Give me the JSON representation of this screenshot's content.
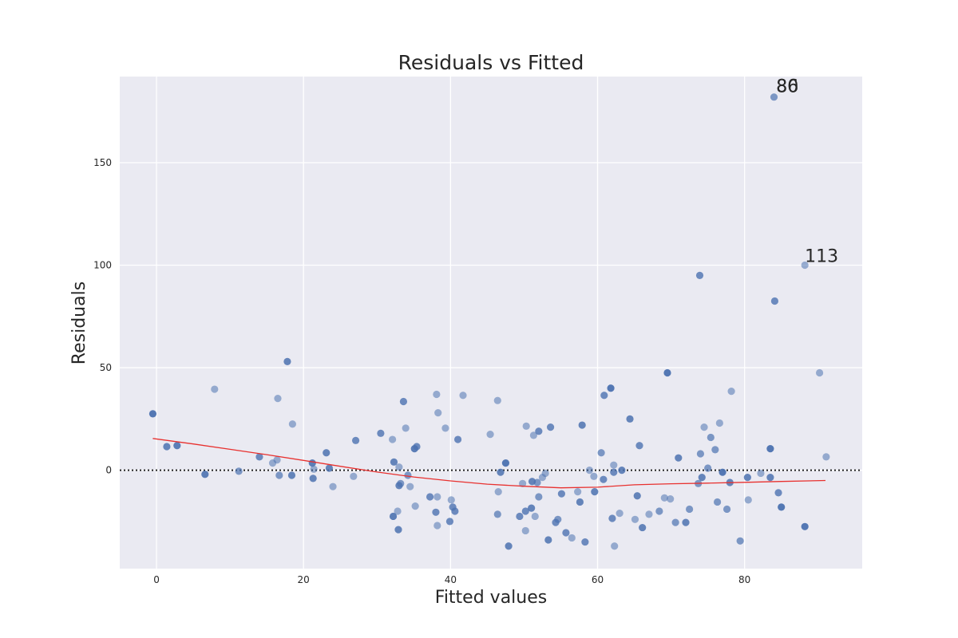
{
  "chart_data": {
    "type": "scatter",
    "title": "Residuals vs Fitted",
    "xlabel": "Fitted values",
    "ylabel": "Residuals",
    "xlim": [
      -5,
      96
    ],
    "ylim": [
      -48,
      192
    ],
    "xticks": [
      0,
      20,
      40,
      60,
      80
    ],
    "yticks": [
      0,
      50,
      100,
      150
    ],
    "grid": true,
    "zero_line": true,
    "point_color": "#4c72b0",
    "line_color": "#e8312f",
    "background_color": "#eaeaf2",
    "annotations": [
      {
        "text": "80",
        "x": 84.3,
        "y": 184.5
      },
      {
        "text": "86",
        "x": 84.3,
        "y": 184.5
      },
      {
        "text": "113",
        "x": 88.2,
        "y": 101.5
      }
    ],
    "points": [
      [
        -0.5,
        27.5,
        0.95
      ],
      [
        1.4,
        11.5,
        0.85
      ],
      [
        2.8,
        12,
        0.9
      ],
      [
        6.6,
        -2,
        0.9
      ],
      [
        7.9,
        39.5,
        0.55
      ],
      [
        11.2,
        -0.5,
        0.7
      ],
      [
        14,
        6.5,
        0.8
      ],
      [
        15.8,
        3.5,
        0.55
      ],
      [
        16.4,
        5,
        0.55
      ],
      [
        16.5,
        35,
        0.55
      ],
      [
        16.7,
        -2.5,
        0.7
      ],
      [
        17.8,
        53,
        0.85
      ],
      [
        18.4,
        -2.5,
        0.85
      ],
      [
        18.5,
        22.5,
        0.55
      ],
      [
        21.2,
        3.5,
        0.9
      ],
      [
        21.3,
        -4,
        0.85
      ],
      [
        21.4,
        0.5,
        0.55
      ],
      [
        23.1,
        8.5,
        0.85
      ],
      [
        23.5,
        1,
        0.85
      ],
      [
        24,
        -8,
        0.55
      ],
      [
        26.8,
        -3,
        0.55
      ],
      [
        27.1,
        14.5,
        0.8
      ],
      [
        30.5,
        18,
        0.8
      ],
      [
        32.1,
        15,
        0.55
      ],
      [
        32.2,
        -22.5,
        0.9
      ],
      [
        32.3,
        4,
        0.85
      ],
      [
        32.8,
        -20,
        0.55
      ],
      [
        32.9,
        -29,
        0.85
      ],
      [
        33,
        1.5,
        0.55
      ],
      [
        33,
        -7.5,
        0.85
      ],
      [
        33.2,
        -6.5,
        0.7
      ],
      [
        33.6,
        33.5,
        0.8
      ],
      [
        33.9,
        20.5,
        0.55
      ],
      [
        34.2,
        -2.5,
        0.7
      ],
      [
        34.5,
        -8,
        0.55
      ],
      [
        35.1,
        10.5,
        0.9
      ],
      [
        35.4,
        11.5,
        0.8
      ],
      [
        35.2,
        -17.5,
        0.55
      ],
      [
        37.2,
        -13,
        0.8
      ],
      [
        38,
        -20.5,
        0.8
      ],
      [
        38.1,
        37,
        0.55
      ],
      [
        38.2,
        -13,
        0.55
      ],
      [
        38.3,
        28,
        0.55
      ],
      [
        38.2,
        -27,
        0.55
      ],
      [
        39.3,
        20.5,
        0.55
      ],
      [
        39.9,
        -25,
        0.8
      ],
      [
        40.1,
        -14.5,
        0.55
      ],
      [
        40.3,
        -18,
        0.8
      ],
      [
        40.6,
        -20,
        0.8
      ],
      [
        41,
        15,
        0.8
      ],
      [
        41.7,
        36.5,
        0.55
      ],
      [
        45.4,
        17.5,
        0.55
      ],
      [
        46.4,
        -21.5,
        0.7
      ],
      [
        46.4,
        34,
        0.55
      ],
      [
        46.5,
        -10.5,
        0.55
      ],
      [
        46.8,
        -1,
        0.85
      ],
      [
        47.5,
        3.5,
        0.95
      ],
      [
        47.9,
        -37,
        0.85
      ],
      [
        49.4,
        -22.5,
        0.8
      ],
      [
        49.8,
        -6.5,
        0.55
      ],
      [
        50.2,
        -20,
        0.8
      ],
      [
        50.2,
        -29.5,
        0.55
      ],
      [
        50.3,
        21.5,
        0.55
      ],
      [
        51,
        -18.5,
        0.85
      ],
      [
        51.1,
        -5.5,
        0.85
      ],
      [
        51.3,
        17,
        0.55
      ],
      [
        51.5,
        -22.5,
        0.55
      ],
      [
        51.8,
        -6,
        0.7
      ],
      [
        52,
        19,
        0.8
      ],
      [
        52,
        -13,
        0.7
      ],
      [
        52.5,
        -3.5,
        0.55
      ],
      [
        52.9,
        -1.5,
        0.55
      ],
      [
        53.3,
        -34,
        0.85
      ],
      [
        53.6,
        21,
        0.8
      ],
      [
        54.3,
        -25.5,
        0.8
      ],
      [
        54.6,
        -24,
        0.7
      ],
      [
        55.1,
        -11.5,
        0.8
      ],
      [
        55.7,
        -30.5,
        0.8
      ],
      [
        56.5,
        -33,
        0.55
      ],
      [
        57.3,
        -10.5,
        0.55
      ],
      [
        57.6,
        -15.5,
        0.85
      ],
      [
        57.9,
        22,
        0.85
      ],
      [
        58.3,
        -35,
        0.8
      ],
      [
        58.9,
        0,
        0.55
      ],
      [
        59.5,
        -3,
        0.55
      ],
      [
        59.6,
        -10.5,
        0.85
      ],
      [
        60.5,
        8.5,
        0.7
      ],
      [
        60.8,
        -4.5,
        0.8
      ],
      [
        60.9,
        36.5,
        0.8
      ],
      [
        61.8,
        40,
        0.95
      ],
      [
        62,
        -23.5,
        0.8
      ],
      [
        62.2,
        -1,
        0.8
      ],
      [
        62.2,
        2.5,
        0.55
      ],
      [
        62.3,
        -37,
        0.55
      ],
      [
        63,
        -21,
        0.55
      ],
      [
        63.3,
        0,
        0.85
      ],
      [
        64.4,
        25,
        0.85
      ],
      [
        65.1,
        -24,
        0.55
      ],
      [
        65.4,
        -12.5,
        0.85
      ],
      [
        65.7,
        12,
        0.8
      ],
      [
        66.1,
        -28,
        0.85
      ],
      [
        67,
        -21.5,
        0.55
      ],
      [
        68.4,
        -20,
        0.7
      ],
      [
        69.1,
        -13.5,
        0.55
      ],
      [
        69.5,
        47.5,
        0.95
      ],
      [
        69.9,
        -14,
        0.55
      ],
      [
        70.6,
        -25.5,
        0.7
      ],
      [
        71,
        6,
        0.85
      ],
      [
        72,
        -25.5,
        0.85
      ],
      [
        72.5,
        -19,
        0.7
      ],
      [
        73.7,
        -6.5,
        0.7
      ],
      [
        73.9,
        95,
        0.8
      ],
      [
        74,
        8,
        0.7
      ],
      [
        74.2,
        -3.5,
        0.85
      ],
      [
        74.5,
        21,
        0.55
      ],
      [
        75,
        1,
        0.7
      ],
      [
        75.4,
        16,
        0.7
      ],
      [
        76,
        10,
        0.7
      ],
      [
        76.3,
        -15.5,
        0.7
      ],
      [
        76.6,
        23,
        0.55
      ],
      [
        77,
        -1,
        0.95
      ],
      [
        77.6,
        -19,
        0.7
      ],
      [
        78,
        -6,
        0.85
      ],
      [
        78.2,
        38.5,
        0.55
      ],
      [
        79.4,
        -34.5,
        0.7
      ],
      [
        80.4,
        -3.5,
        0.85
      ],
      [
        80.5,
        -14.5,
        0.55
      ],
      [
        82.2,
        -1.5,
        0.55
      ],
      [
        83.5,
        10.5,
        0.95
      ],
      [
        83.5,
        -3.5,
        0.85
      ],
      [
        84,
        182,
        0.7
      ],
      [
        84.1,
        82.5,
        0.8
      ],
      [
        84.6,
        -11,
        0.8
      ],
      [
        85,
        -18,
        0.95
      ],
      [
        88.2,
        -27.5,
        0.95
      ],
      [
        88.2,
        100,
        0.55
      ],
      [
        90.2,
        47.5,
        0.55
      ],
      [
        91.1,
        6.5,
        0.55
      ]
    ],
    "lowess": [
      [
        -0.5,
        15.5
      ],
      [
        5,
        12.8
      ],
      [
        10,
        10.2
      ],
      [
        15,
        7.6
      ],
      [
        20,
        4.8
      ],
      [
        25,
        1.9
      ],
      [
        30,
        -0.9
      ],
      [
        35,
        -3.3
      ],
      [
        40,
        -5.2
      ],
      [
        45,
        -6.8
      ],
      [
        50,
        -7.8
      ],
      [
        55,
        -8.6
      ],
      [
        60,
        -8.3
      ],
      [
        65,
        -7.1
      ],
      [
        70,
        -6.6
      ],
      [
        75,
        -6.3
      ],
      [
        80,
        -5.9
      ],
      [
        85,
        -5.5
      ],
      [
        91,
        -5.0
      ]
    ]
  }
}
